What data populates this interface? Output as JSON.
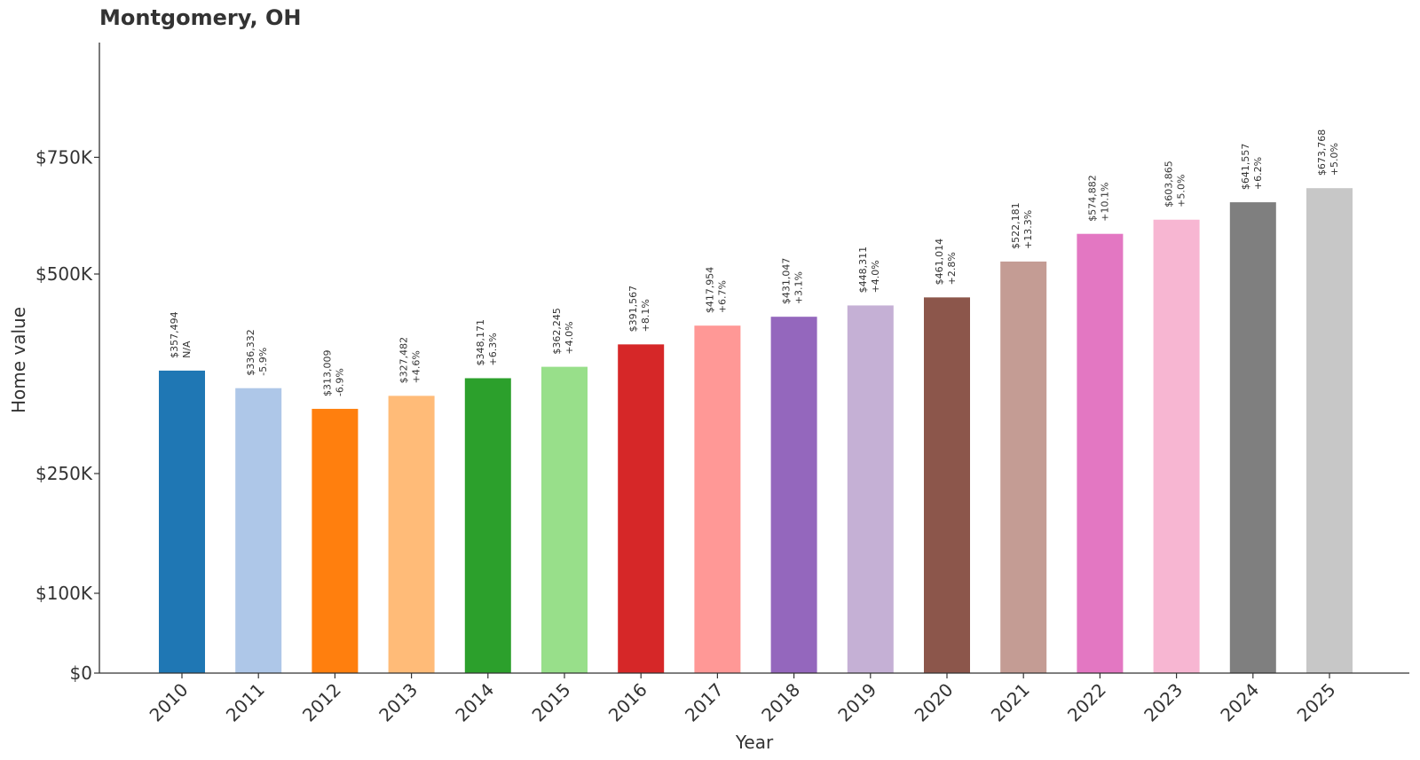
{
  "chart_data": {
    "type": "bar",
    "title": "Montgomery, OH",
    "xlabel": "Year",
    "ylabel": "Home value",
    "categories": [
      "2010",
      "2011",
      "2012",
      "2013",
      "2014",
      "2015",
      "2016",
      "2017",
      "2018",
      "2019",
      "2020",
      "2021",
      "2022",
      "2023",
      "2024",
      "2025"
    ],
    "values": [
      357494,
      336332,
      313009,
      327482,
      348171,
      362245,
      391567,
      417954,
      431047,
      448311,
      461014,
      522181,
      574882,
      603865,
      641557,
      673768
    ],
    "value_labels": [
      "$357,494",
      "$336,332",
      "$313,009",
      "$327,482",
      "$348,171",
      "$362,245",
      "$391,567",
      "$417,954",
      "$431,047",
      "$448,311",
      "$461,014",
      "$522,181",
      "$574,882",
      "$603,865",
      "$641,557",
      "$673,768"
    ],
    "change_labels": [
      "N/A",
      "-5.9%",
      "-6.9%",
      "+4.6%",
      "+6.3%",
      "+4.0%",
      "+8.1%",
      "+6.7%",
      "+3.1%",
      "+4.0%",
      "+2.8%",
      "+13.3%",
      "+10.1%",
      "+5.0%",
      "+6.2%",
      "+5.0%"
    ],
    "colors": [
      "#1f77b4",
      "#aec7e8",
      "#ff7f0e",
      "#ffbb78",
      "#2ca02c",
      "#98df8a",
      "#d62728",
      "#ff9896",
      "#9467bd",
      "#c5b0d5",
      "#8c564b",
      "#c49c94",
      "#e377c2",
      "#f7b6d2",
      "#7f7f7f",
      "#c7c7c7"
    ],
    "ylim": [
      0,
      750000
    ],
    "yticks": [
      0,
      100000,
      250000,
      500000,
      750000
    ],
    "ytick_labels": [
      "$0",
      "$100K",
      "$250K",
      "$500K",
      "$750K"
    ],
    "y_scale": "symlog",
    "grid": false,
    "legend": false
  }
}
